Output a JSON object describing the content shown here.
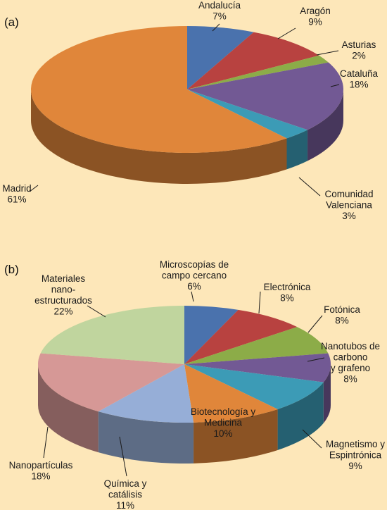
{
  "chart_data": [
    {
      "type": "pie",
      "panel_label": "(a)",
      "slices": [
        {
          "lines": [
            "Andalucía",
            "7%"
          ],
          "value": 7,
          "color": "#4a72ad"
        },
        {
          "lines": [
            "Aragón",
            "9%"
          ],
          "value": 9,
          "color": "#b84240"
        },
        {
          "lines": [
            "Asturias",
            "2%"
          ],
          "value": 2,
          "color": "#8cac48"
        },
        {
          "lines": [
            "Cataluña",
            "18%"
          ],
          "value": 18,
          "color": "#725994"
        },
        {
          "lines": [
            "Comunidad",
            "Valenciana",
            "3%"
          ],
          "value": 3,
          "color": "#3c9bb6"
        },
        {
          "lines": [
            "Madrid",
            "61%"
          ],
          "value": 61,
          "color": "#e0863a"
        }
      ]
    },
    {
      "type": "pie",
      "panel_label": "(b)",
      "slices": [
        {
          "lines": [
            "Microscopías de",
            "campo cercano",
            "6%"
          ],
          "value": 6,
          "color": "#4a72ad"
        },
        {
          "lines": [
            "Electrónica",
            "8%"
          ],
          "value": 8,
          "color": "#b84240"
        },
        {
          "lines": [
            "Fotónica",
            "8%"
          ],
          "value": 8,
          "color": "#8cac48"
        },
        {
          "lines": [
            "Nanotubos de",
            "carbono",
            "y  grafeno",
            "8%"
          ],
          "value": 8,
          "color": "#725994"
        },
        {
          "lines": [
            "Magnetismo y",
            "Espintrónica",
            "9%"
          ],
          "value": 9,
          "color": "#3c9bb6"
        },
        {
          "lines": [
            "Biotecnología y",
            "Medicina",
            "10%"
          ],
          "value": 10,
          "color": "#e0863a"
        },
        {
          "lines": [
            "Química y",
            "catálisis",
            "11%"
          ],
          "value": 11,
          "color": "#96aed7"
        },
        {
          "lines": [
            "Nanopartículas",
            "18%"
          ],
          "value": 18,
          "color": "#d69896"
        },
        {
          "lines": [
            "Materiales",
            "nano-",
            "estructurados",
            "22%"
          ],
          "value": 22,
          "color": "#c0d59e"
        }
      ]
    }
  ]
}
